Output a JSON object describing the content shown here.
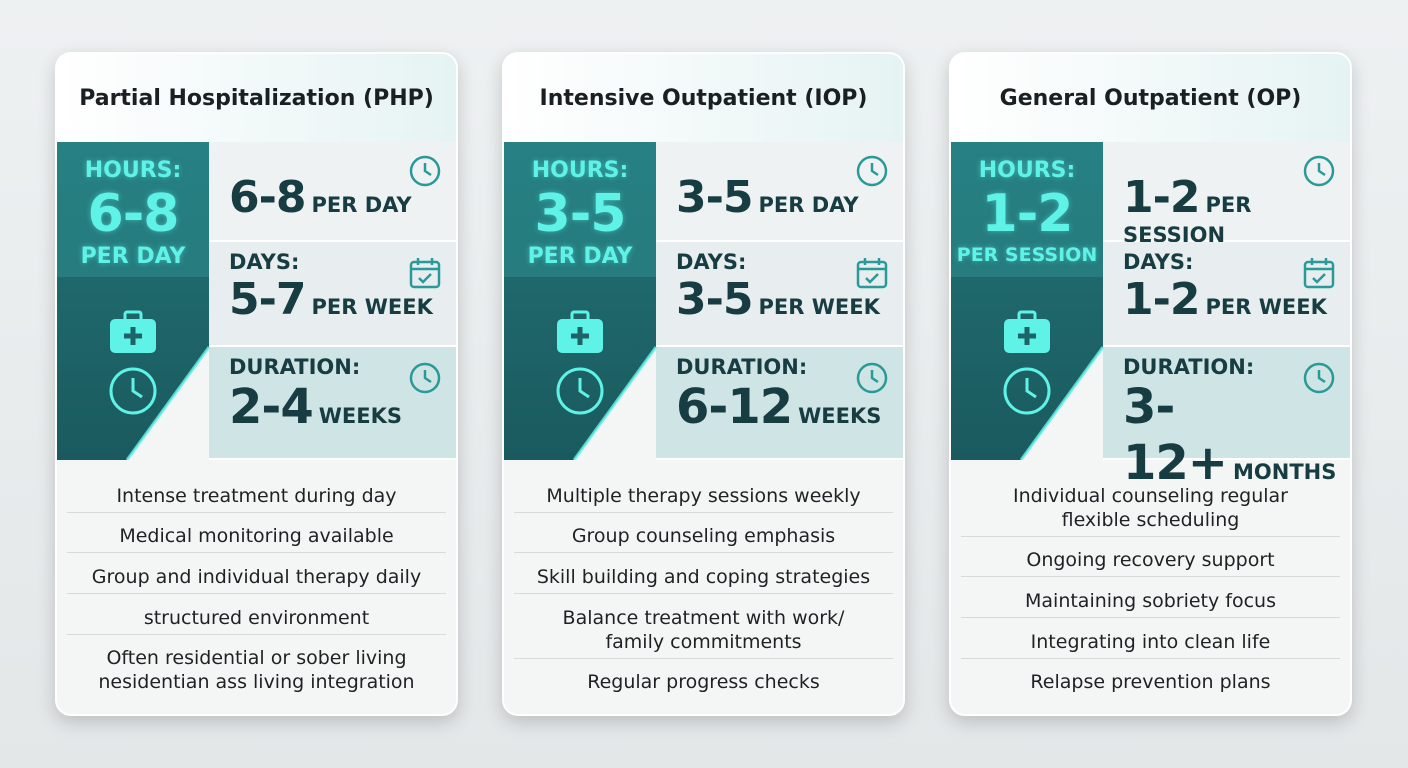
{
  "cards": [
    {
      "title": "Partial Hospitalization (PHP)",
      "hours": {
        "label": "HOURS:",
        "value": "6-8",
        "unit": "PER DAY"
      },
      "rows": [
        {
          "value": "6-8",
          "unit": "PER DAY"
        },
        {
          "label": "DAYS:",
          "value": "5-7",
          "unit": "PER WEEK"
        },
        {
          "label": "DURATION:",
          "value": "2-4",
          "unit": "WEEKS"
        }
      ],
      "bullets": [
        "Intense treatment during day",
        "Medical monitoring available",
        "Group and individual therapy daily",
        "structured environment",
        "Often residential or sober living\nnesidentian ass living integration"
      ]
    },
    {
      "title": "Intensive Outpatient (IOP)",
      "hours": {
        "label": "HOURS:",
        "value": "3-5",
        "unit": "PER DAY"
      },
      "rows": [
        {
          "value": "3-5",
          "unit": "PER DAY"
        },
        {
          "label": "DAYS:",
          "value": "3-5",
          "unit": "PER WEEK"
        },
        {
          "label": "DURATION:",
          "value": "6-12",
          "unit": "WEEKS"
        }
      ],
      "bullets": [
        "Multiple therapy sessions weekly",
        "Group counseling emphasis",
        "Skill building and coping strategies",
        "Balance treatment with work/\nfamily commitments",
        "Regular progress checks"
      ]
    },
    {
      "title": "General Outpatient (OP)",
      "hours": {
        "label": "HOURS:",
        "value": "1-2",
        "unit": "PER SESSION"
      },
      "rows": [
        {
          "value": "1-2",
          "unit": "PER SESSION"
        },
        {
          "label": "DAYS:",
          "value": "1-2",
          "unit": "PER WEEK"
        },
        {
          "label": "DURATION:",
          "value": "3-12+",
          "unit": "MONTHS"
        }
      ],
      "bullets": [
        "Individual counseling regular\nflexible scheduling",
        "Ongoing recovery support",
        "Maintaining sobriety focus",
        "Integrating into clean life",
        "Relapse prevention plans"
      ]
    }
  ]
}
